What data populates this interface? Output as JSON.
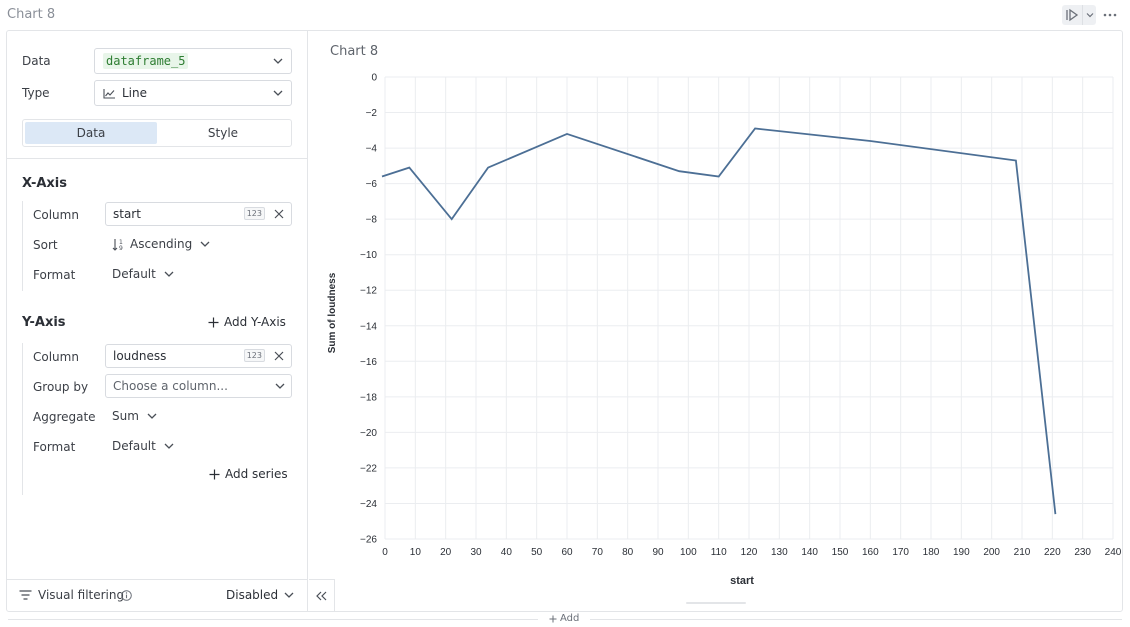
{
  "header": {
    "title": "Chart 8"
  },
  "config": {
    "data_label": "Data",
    "data_value": "dataframe_5",
    "type_label": "Type",
    "type_value": "Line",
    "tabs": [
      {
        "label": "Data",
        "active": true
      },
      {
        "label": "Style",
        "active": false
      }
    ]
  },
  "x_axis": {
    "title": "X-Axis",
    "column_label": "Column",
    "column_value": "start",
    "column_badge": "123",
    "sort_label": "Sort",
    "sort_value": "Ascending",
    "format_label": "Format",
    "format_value": "Default"
  },
  "y_axis": {
    "title": "Y-Axis",
    "add_label": "Add Y-Axis",
    "column_label": "Column",
    "column_value": "loudness",
    "column_badge": "123",
    "group_label": "Group by",
    "group_placeholder": "Choose a column...",
    "aggregate_label": "Aggregate",
    "aggregate_value": "Sum",
    "format_label": "Format",
    "format_value": "Default",
    "add_series_label": "Add series"
  },
  "footer": {
    "visual_filtering_label": "Visual filtering",
    "visual_filtering_value": "Disabled",
    "add_label": "Add"
  },
  "chart_data": {
    "type": "line",
    "title": "Chart 8",
    "xlabel": "start",
    "ylabel": "Sum of loudness",
    "xlim": [
      0,
      240
    ],
    "ylim": [
      -26,
      0
    ],
    "x_ticks": [
      0,
      10,
      20,
      30,
      40,
      50,
      60,
      70,
      80,
      90,
      100,
      110,
      120,
      130,
      140,
      150,
      160,
      170,
      180,
      190,
      200,
      210,
      220,
      230,
      240
    ],
    "y_ticks": [
      0,
      -2,
      -4,
      -6,
      -8,
      -10,
      -12,
      -14,
      -16,
      -18,
      -20,
      -22,
      -24,
      -26
    ],
    "grid": true,
    "color": "#4c6f95",
    "series": [
      {
        "x": [
          -1,
          8,
          22,
          34,
          60,
          97,
          110,
          122,
          160,
          208,
          221
        ],
        "y": [
          -5.6,
          -5.1,
          -8.0,
          -5.1,
          -3.2,
          -5.3,
          -5.6,
          -2.9,
          -3.6,
          -4.7,
          -24.6
        ]
      }
    ]
  }
}
